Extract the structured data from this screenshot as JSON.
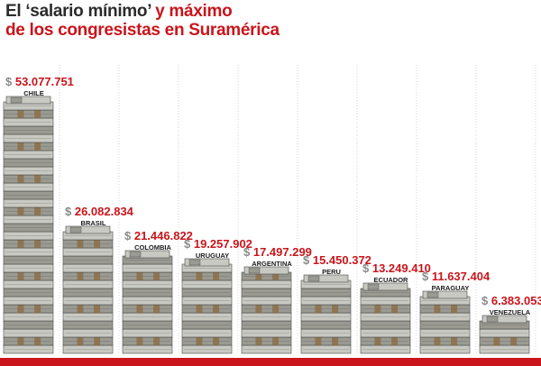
{
  "title": {
    "part1": "El ‘salario mínimo’",
    "part2": " y máximo",
    "line2": "de los congresistas en Suramérica"
  },
  "colors": {
    "accent": "#c9151b",
    "title_dark": "#2b2b2b",
    "currency_gray": "#8a8a8a",
    "label_dark": "#1a1a1a",
    "guideline": "#d4d4d4",
    "bill_light": "#c9c9c3",
    "bill_mid": "#9a9a93",
    "bill_dark": "#4a4a46",
    "band_brown": "#8b6a3e"
  },
  "currency_symbol": "$",
  "chart_data": {
    "type": "bar",
    "visual_style": "stacks of banknotes",
    "categories": [
      "CHILE",
      "BRASIL",
      "COLOMBIA",
      "URUGUAY",
      "ARGENTINA",
      "PERU",
      "ECUADOR",
      "PARAGUAY",
      "VENEZUELA"
    ],
    "values": [
      53077751,
      26082834,
      21446822,
      19257902,
      17497299,
      15450372,
      13249410,
      11637404,
      6383053
    ],
    "value_labels": [
      "53.077.751",
      "26.082.834",
      "21.446.822",
      "19.257.902",
      "17.497.299",
      "15.450.372",
      "13.249.410",
      "11.637.404",
      "6.383.053"
    ],
    "ylim": [
      0,
      53077751
    ],
    "grid": "vertical dotted separators",
    "legend": "none"
  }
}
